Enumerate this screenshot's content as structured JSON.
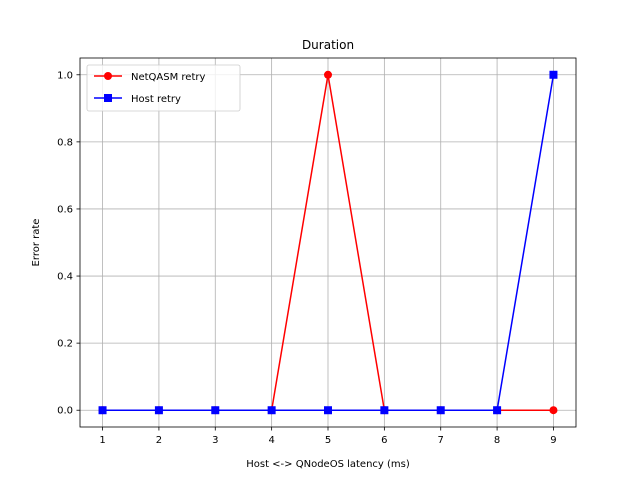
{
  "chart_data": {
    "type": "line",
    "title": "Duration",
    "xlabel": "Host <-> QNodeOS latency (ms)",
    "ylabel": "Error rate",
    "x": [
      1,
      2,
      3,
      4,
      5,
      6,
      7,
      8,
      9
    ],
    "xlim": [
      0.6,
      9.4
    ],
    "ylim": [
      -0.05,
      1.05
    ],
    "xticks": [
      1,
      2,
      3,
      4,
      5,
      6,
      7,
      8,
      9
    ],
    "yticks": [
      "0.0",
      "0.2",
      "0.4",
      "0.6",
      "0.8",
      "1.0"
    ],
    "grid": true,
    "legend_position": "top-left",
    "series": [
      {
        "name": "NetQASM retry",
        "values": [
          0,
          0,
          0,
          0,
          1,
          0,
          0,
          0,
          0
        ],
        "color": "#ff0000",
        "marker": "circle"
      },
      {
        "name": "Host retry",
        "values": [
          0,
          0,
          0,
          0,
          0,
          0,
          0,
          0,
          1
        ],
        "color": "#0000ff",
        "marker": "square"
      }
    ]
  }
}
